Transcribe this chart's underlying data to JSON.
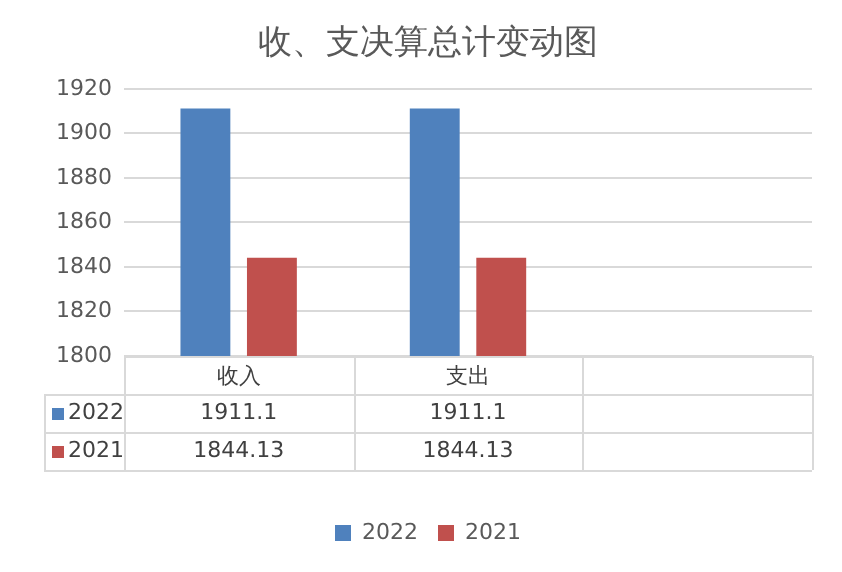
{
  "chart_data": {
    "type": "bar",
    "title": "收、支决算总计变动图",
    "categories": [
      "收入",
      "支出",
      null
    ],
    "series": [
      {
        "name": "2022",
        "color": "#4f81bd",
        "values": [
          1911.1,
          1911.1,
          null
        ]
      },
      {
        "name": "2021",
        "color": "#c0504d",
        "values": [
          1844.13,
          1844.13,
          null
        ]
      }
    ],
    "ylim": [
      1800,
      1920
    ],
    "yticks": [
      1800,
      1820,
      1840,
      1860,
      1880,
      1900,
      1920
    ],
    "grid": "y",
    "legend": "bottom",
    "data_labels": true
  }
}
